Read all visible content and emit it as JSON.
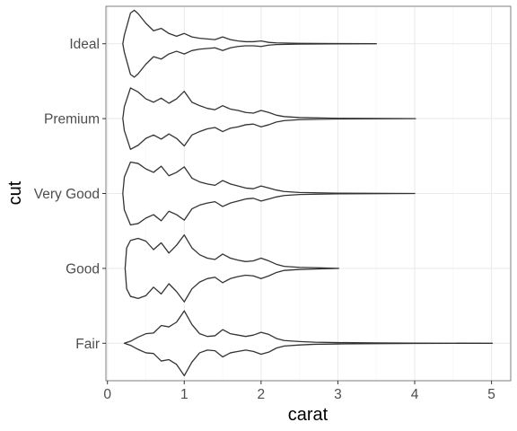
{
  "chart_data": {
    "type": "violin",
    "xlabel": "carat",
    "ylabel": "cut",
    "xlim": [
      -0.02,
      5.25
    ],
    "x_ticks": [
      0,
      1,
      2,
      3,
      4,
      5
    ],
    "x_tick_labels": [
      "0",
      "1",
      "2",
      "3",
      "4",
      "5"
    ],
    "grid": true,
    "legend": "none",
    "categories": [
      "Fair",
      "Good",
      "Very Good",
      "Premium",
      "Ideal"
    ],
    "series": [
      {
        "category": "Fair",
        "min": 0.22,
        "max": 5.01,
        "density": [
          [
            0.22,
            0.0
          ],
          [
            0.3,
            0.06
          ],
          [
            0.4,
            0.18
          ],
          [
            0.5,
            0.28
          ],
          [
            0.6,
            0.3
          ],
          [
            0.7,
            0.52
          ],
          [
            0.8,
            0.48
          ],
          [
            0.9,
            0.62
          ],
          [
            1.0,
            0.95
          ],
          [
            1.1,
            0.55
          ],
          [
            1.2,
            0.28
          ],
          [
            1.3,
            0.2
          ],
          [
            1.4,
            0.22
          ],
          [
            1.5,
            0.4
          ],
          [
            1.6,
            0.28
          ],
          [
            1.7,
            0.24
          ],
          [
            1.8,
            0.2
          ],
          [
            1.9,
            0.24
          ],
          [
            2.0,
            0.32
          ],
          [
            2.1,
            0.26
          ],
          [
            2.2,
            0.14
          ],
          [
            2.3,
            0.08
          ],
          [
            2.5,
            0.05
          ],
          [
            2.7,
            0.03
          ],
          [
            3.0,
            0.02
          ],
          [
            3.5,
            0.01
          ],
          [
            4.0,
            0.005
          ],
          [
            5.01,
            0.0
          ]
        ]
      },
      {
        "category": "Good",
        "min": 0.23,
        "max": 3.01,
        "density": [
          [
            0.23,
            0.0
          ],
          [
            0.25,
            0.6
          ],
          [
            0.3,
            0.82
          ],
          [
            0.4,
            0.88
          ],
          [
            0.5,
            0.8
          ],
          [
            0.6,
            0.55
          ],
          [
            0.7,
            0.75
          ],
          [
            0.8,
            0.45
          ],
          [
            0.9,
            0.68
          ],
          [
            1.0,
            0.98
          ],
          [
            1.1,
            0.6
          ],
          [
            1.2,
            0.4
          ],
          [
            1.3,
            0.3
          ],
          [
            1.4,
            0.26
          ],
          [
            1.5,
            0.42
          ],
          [
            1.6,
            0.3
          ],
          [
            1.7,
            0.24
          ],
          [
            1.8,
            0.2
          ],
          [
            1.9,
            0.22
          ],
          [
            2.0,
            0.3
          ],
          [
            2.1,
            0.22
          ],
          [
            2.2,
            0.12
          ],
          [
            2.3,
            0.06
          ],
          [
            2.5,
            0.03
          ],
          [
            2.7,
            0.02
          ],
          [
            3.01,
            0.0
          ]
        ]
      },
      {
        "category": "Very Good",
        "min": 0.2,
        "max": 4.0,
        "density": [
          [
            0.2,
            0.0
          ],
          [
            0.22,
            0.48
          ],
          [
            0.3,
            0.92
          ],
          [
            0.4,
            0.88
          ],
          [
            0.5,
            0.72
          ],
          [
            0.6,
            0.62
          ],
          [
            0.7,
            0.8
          ],
          [
            0.8,
            0.52
          ],
          [
            0.9,
            0.62
          ],
          [
            1.0,
            0.78
          ],
          [
            1.1,
            0.45
          ],
          [
            1.2,
            0.34
          ],
          [
            1.3,
            0.28
          ],
          [
            1.4,
            0.24
          ],
          [
            1.5,
            0.38
          ],
          [
            1.6,
            0.28
          ],
          [
            1.7,
            0.22
          ],
          [
            1.8,
            0.16
          ],
          [
            1.9,
            0.14
          ],
          [
            2.0,
            0.22
          ],
          [
            2.1,
            0.16
          ],
          [
            2.2,
            0.1
          ],
          [
            2.3,
            0.06
          ],
          [
            2.5,
            0.03
          ],
          [
            3.0,
            0.01
          ],
          [
            4.0,
            0.0
          ]
        ]
      },
      {
        "category": "Premium",
        "min": 0.2,
        "max": 4.01,
        "density": [
          [
            0.2,
            0.0
          ],
          [
            0.22,
            0.35
          ],
          [
            0.3,
            0.9
          ],
          [
            0.4,
            0.78
          ],
          [
            0.5,
            0.58
          ],
          [
            0.6,
            0.48
          ],
          [
            0.7,
            0.6
          ],
          [
            0.8,
            0.45
          ],
          [
            0.9,
            0.58
          ],
          [
            1.0,
            0.8
          ],
          [
            1.1,
            0.48
          ],
          [
            1.2,
            0.38
          ],
          [
            1.3,
            0.3
          ],
          [
            1.4,
            0.26
          ],
          [
            1.5,
            0.38
          ],
          [
            1.6,
            0.28
          ],
          [
            1.7,
            0.24
          ],
          [
            1.8,
            0.18
          ],
          [
            1.9,
            0.16
          ],
          [
            2.0,
            0.24
          ],
          [
            2.1,
            0.18
          ],
          [
            2.2,
            0.1
          ],
          [
            2.3,
            0.06
          ],
          [
            2.5,
            0.03
          ],
          [
            3.0,
            0.01
          ],
          [
            4.01,
            0.0
          ]
        ]
      },
      {
        "category": "Ideal",
        "min": 0.2,
        "max": 3.5,
        "density": [
          [
            0.2,
            0.0
          ],
          [
            0.22,
            0.25
          ],
          [
            0.3,
            0.9
          ],
          [
            0.35,
            0.98
          ],
          [
            0.4,
            0.88
          ],
          [
            0.5,
            0.6
          ],
          [
            0.6,
            0.38
          ],
          [
            0.7,
            0.45
          ],
          [
            0.8,
            0.3
          ],
          [
            0.9,
            0.22
          ],
          [
            1.0,
            0.3
          ],
          [
            1.1,
            0.2
          ],
          [
            1.2,
            0.16
          ],
          [
            1.3,
            0.14
          ],
          [
            1.4,
            0.12
          ],
          [
            1.5,
            0.2
          ],
          [
            1.6,
            0.12
          ],
          [
            1.7,
            0.08
          ],
          [
            1.8,
            0.06
          ],
          [
            1.9,
            0.06
          ],
          [
            2.0,
            0.08
          ],
          [
            2.1,
            0.04
          ],
          [
            2.2,
            0.025
          ],
          [
            2.5,
            0.012
          ],
          [
            3.0,
            0.005
          ],
          [
            3.5,
            0.0
          ]
        ]
      }
    ]
  }
}
